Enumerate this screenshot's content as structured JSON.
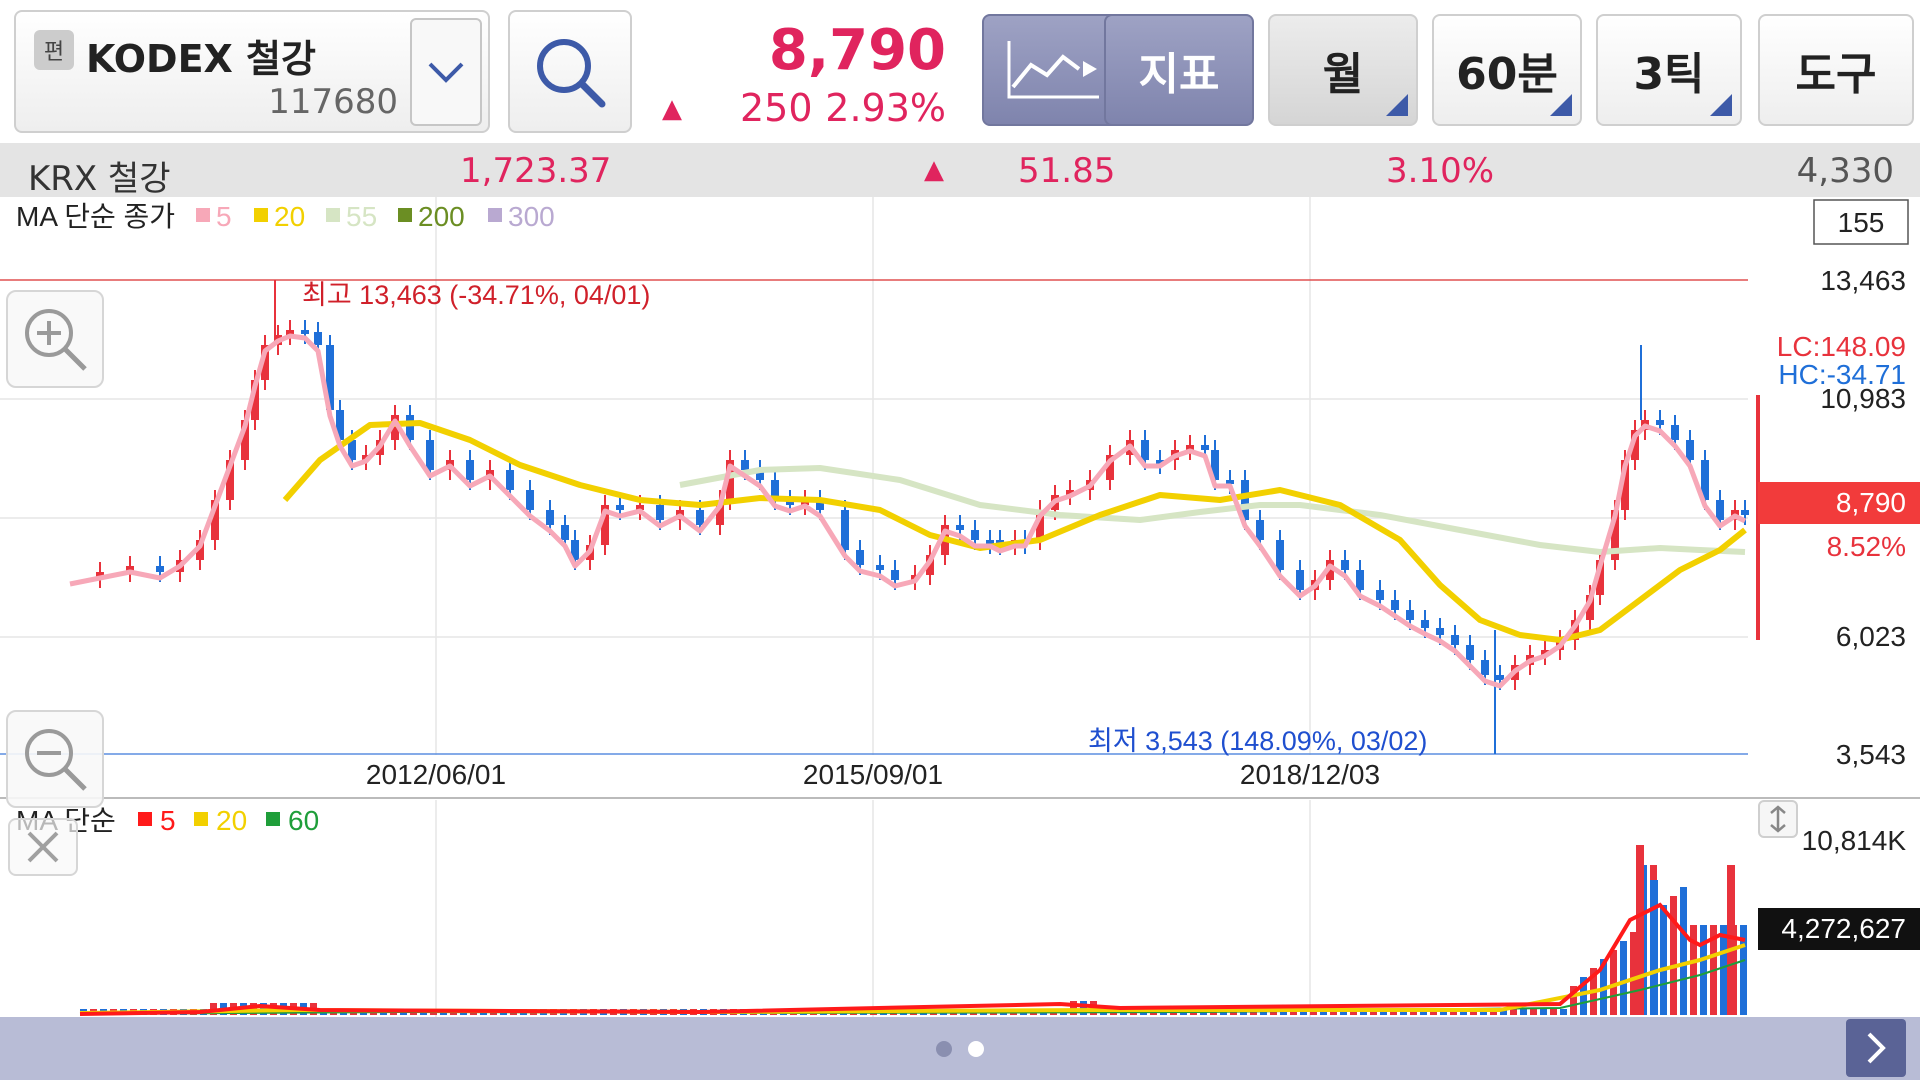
{
  "header": {
    "edit_badge": "편",
    "stock_name": "KODEX 철강",
    "stock_code": "117680",
    "price": "8,790",
    "change_arrow": "▲",
    "change": "250",
    "change_pct": "2.93%",
    "indicator_label": "지표",
    "period_label": "월",
    "interval_label": "60분",
    "tick_label": "3틱",
    "tools_label": "도구"
  },
  "index_bar": {
    "name": "KRX 철강",
    "value": "1,723.37",
    "arrow": "▲",
    "change": "51.85",
    "change_pct": "3.10%",
    "volume": "4,330"
  },
  "main_chart": {
    "legend_prefix": "MA 단순 종가",
    "ma_legend": [
      {
        "period": "5",
        "color": "#f7a8b8"
      },
      {
        "period": "20",
        "color": "#f2d000"
      },
      {
        "period": "55",
        "color": "#d6e5c4"
      },
      {
        "period": "200",
        "color": "#6b8e23"
      },
      {
        "period": "300",
        "color": "#b9a9d1"
      }
    ],
    "count_box": "155",
    "y_tick_labels": [
      "13,463",
      "10,983",
      "6,023",
      "3,543"
    ],
    "lc_label": "LC:148.09",
    "hc_label": "HC:-34.71",
    "current_price_label": "8,790",
    "current_pct_label": "8.52%",
    "high_annotation": "최고 13,463 (-34.71%, 04/01)",
    "low_annotation": "최저 3,543 (148.09%, 03/02)",
    "x_tick_labels": [
      "2012/06/01",
      "2015/09/01",
      "2018/12/03"
    ],
    "colors": {
      "up": "#e8323c",
      "down": "#1f6fd8",
      "high_line": "#e05050",
      "low_line": "#5b8ee0"
    }
  },
  "volume_chart": {
    "legend_prefix": "MA 단순",
    "ma_legend": [
      {
        "period": "5",
        "color": "#ff1a1a"
      },
      {
        "period": "20",
        "color": "#f2d000"
      },
      {
        "period": "60",
        "color": "#1f9e3a"
      }
    ],
    "y_tick_label": "10,814K",
    "current_volume": "4,272,627"
  },
  "icons": {
    "search": "search-icon",
    "dropdown": "chevron-down-icon",
    "chart_type": "line-chart-icon",
    "zoom_in": "zoom-in-icon",
    "zoom_out": "zoom-out-icon",
    "close": "close-icon",
    "resize": "vertical-resize-icon",
    "next": "chevron-right-icon"
  }
}
